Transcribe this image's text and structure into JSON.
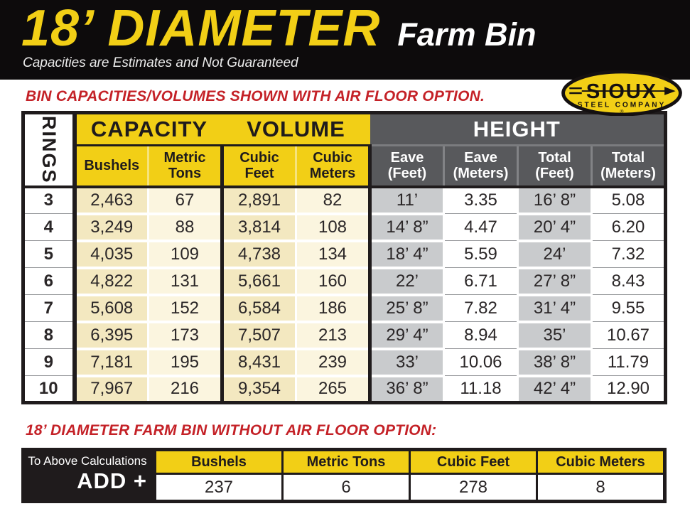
{
  "header": {
    "title": "18’ DIAMETER",
    "product": "Farm Bin",
    "disclaimer": "Capacities are Estimates and Not Guaranteed"
  },
  "logo": {
    "name": "SIOUX",
    "subname": "STEEL COMPANY",
    "registered": "®"
  },
  "with_air_floor": {
    "heading": "BIN CAPACITIES/VOLUMES SHOWN WITH AIR FLOOR OPTION."
  },
  "main_table": {
    "rings_label": "RINGS",
    "groups": [
      {
        "label": "CAPACITY"
      },
      {
        "label": "VOLUME"
      },
      {
        "label": "HEIGHT"
      }
    ],
    "columns": [
      {
        "label": "Bushels"
      },
      {
        "label": "Metric Tons"
      },
      {
        "label": "Cubic Feet"
      },
      {
        "label": "Cubic Meters"
      },
      {
        "label": "Eave (Feet)"
      },
      {
        "label": "Eave (Meters)"
      },
      {
        "label": "Total (Feet)"
      },
      {
        "label": "Total (Meters)"
      }
    ],
    "rows": [
      {
        "rings": "3",
        "values": [
          "2,463",
          "67",
          "2,891",
          "82",
          "11’",
          "3.35",
          "16’ 8”",
          "5.08"
        ]
      },
      {
        "rings": "4",
        "values": [
          "3,249",
          "88",
          "3,814",
          "108",
          "14’ 8”",
          "4.47",
          "20’ 4”",
          "6.20"
        ]
      },
      {
        "rings": "5",
        "values": [
          "4,035",
          "109",
          "4,738",
          "134",
          "18’ 4”",
          "5.59",
          "24’",
          "7.32"
        ]
      },
      {
        "rings": "6",
        "values": [
          "4,822",
          "131",
          "5,661",
          "160",
          "22’",
          "6.71",
          "27’ 8”",
          "8.43"
        ]
      },
      {
        "rings": "7",
        "values": [
          "5,608",
          "152",
          "6,584",
          "186",
          "25’ 8”",
          "7.82",
          "31’ 4”",
          "9.55"
        ]
      },
      {
        "rings": "8",
        "values": [
          "6,395",
          "173",
          "7,507",
          "213",
          "29’ 4”",
          "8.94",
          "35’",
          "10.67"
        ]
      },
      {
        "rings": "9",
        "values": [
          "7,181",
          "195",
          "8,431",
          "239",
          "33’",
          "10.06",
          "38’ 8”",
          "11.79"
        ]
      },
      {
        "rings": "10",
        "values": [
          "7,967",
          "216",
          "9,354",
          "265",
          "36’ 8”",
          "11.18",
          "42’ 4”",
          "12.90"
        ]
      }
    ]
  },
  "without_air_floor": {
    "heading": "18’ DIAMETER FARM BIN WITHOUT AIR FLOOR OPTION:",
    "label_line1": "To Above Calculations",
    "label_line2": "ADD +",
    "columns": [
      "Bushels",
      "Metric Tons",
      "Cubic Feet",
      "Cubic Meters"
    ],
    "values": [
      "237",
      "6",
      "278",
      "8"
    ]
  },
  "colors": {
    "brand_yellow": "#F2CF16",
    "cream_dark": "#F3E8C0",
    "cream_light": "#FBF5DF",
    "gray_cell": "#C9CBCD",
    "gray_header": "#58595C",
    "heading_red": "#C42127",
    "band_black": "#0D0B0C"
  }
}
